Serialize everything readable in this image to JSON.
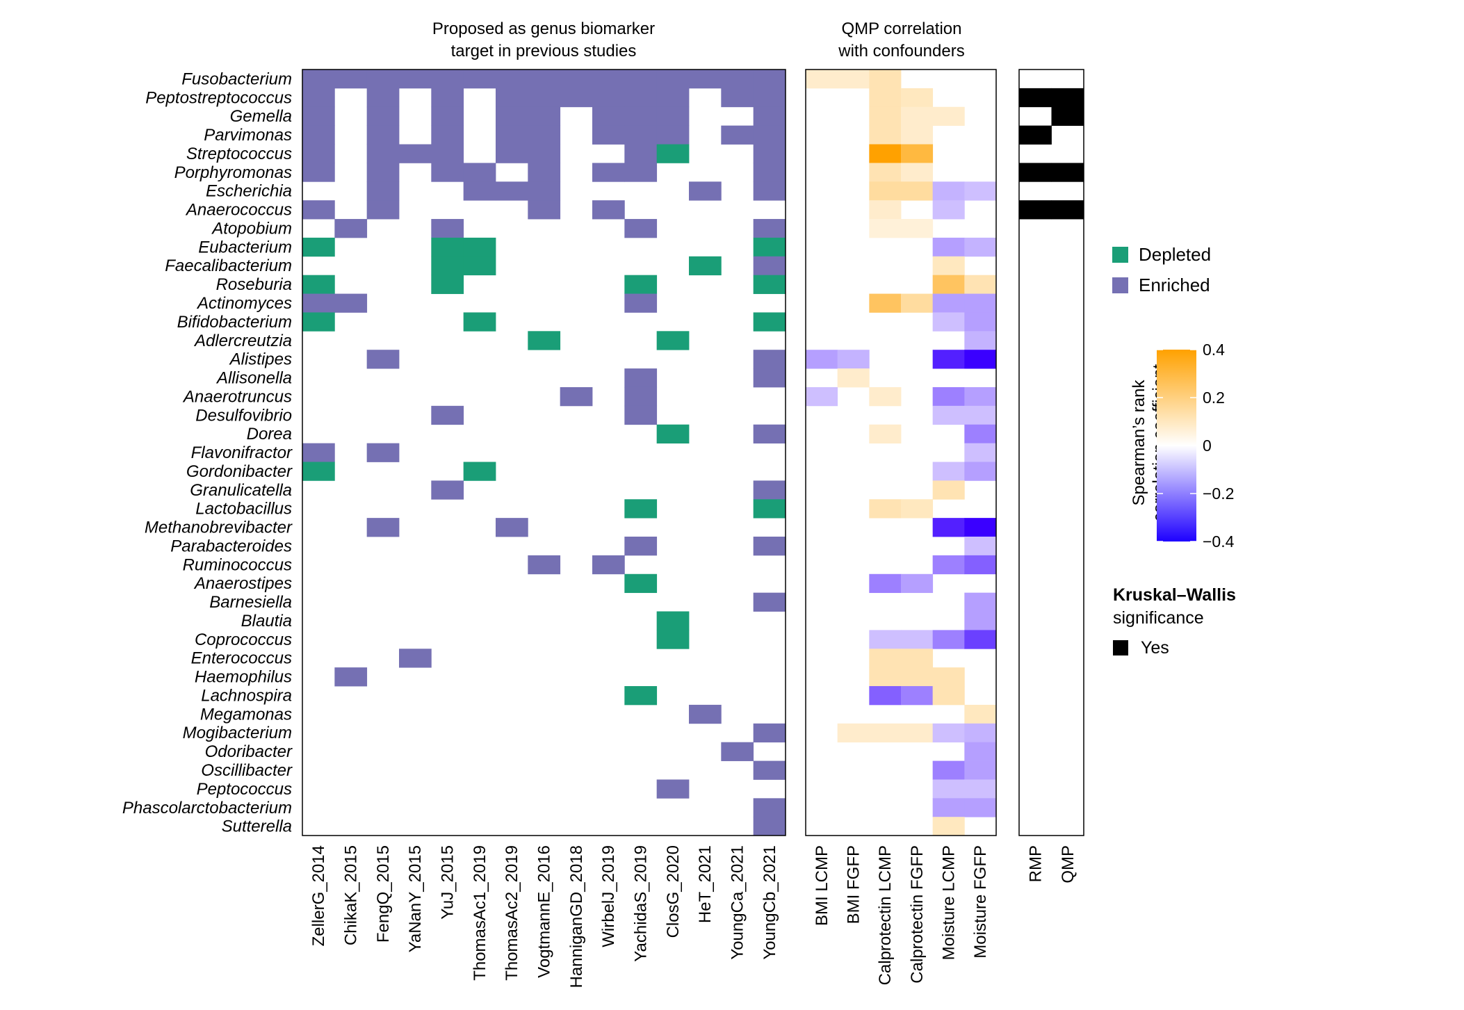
{
  "colors": {
    "depleted": "#1a9e77",
    "enriched": "#7570b3",
    "negative": "#3a00ff",
    "neutral": "#ffffff",
    "positive": "#ffa100",
    "significant": "#000000"
  },
  "chart_data": {
    "type": "heatmap",
    "genera": [
      "Fusobacterium",
      "Peptostreptococcus",
      "Gemella",
      "Parvimonas",
      "Streptococcus",
      "Porphyromonas",
      "Escherichia",
      "Anaerococcus",
      "Atopobium",
      "Eubacterium",
      "Faecalibacterium",
      "Roseburia",
      "Actinomyces",
      "Bifidobacterium",
      "Adlercreutzia",
      "Alistipes",
      "Allisonella",
      "Anaerotruncus",
      "Desulfovibrio",
      "Dorea",
      "Flavonifractor",
      "Gordonibacter",
      "Granulicatella",
      "Lactobacillus",
      "Methanobrevibacter",
      "Parabacteroides",
      "Ruminococcus",
      "Anaerostipes",
      "Barnesiella",
      "Blautia",
      "Coprococcus",
      "Enterococcus",
      "Haemophilus",
      "Lachnospira",
      "Megamonas",
      "Mogibacterium",
      "Odoribacter",
      "Oscillibacter",
      "Peptococcus",
      "Phascolarctobacterium",
      "Sutterella"
    ],
    "biomarker_panel": {
      "title_lines": [
        "Proposed as genus biomarker",
        "target in previous studies"
      ],
      "studies": [
        "ZellerG_2014",
        "ChikaK_2015",
        "FengQ_2015",
        "YaNanY_2015",
        "YuJ_2015",
        "ThomasAc1_2019",
        "ThomasAc2_2019",
        "VogtmannE_2016",
        "HanniganGD_2018",
        "WirbelJ_2019",
        "YachidaS_2019",
        "ClosG_2020",
        "HeT_2021",
        "YoungCa_2021",
        "YoungCb_2021"
      ],
      "value_key": {
        "1": "Enriched",
        "-1": "Depleted",
        "0": "Not proposed"
      },
      "matrix": [
        [
          1,
          1,
          1,
          1,
          1,
          1,
          1,
          1,
          1,
          1,
          1,
          1,
          1,
          1,
          1
        ],
        [
          1,
          0,
          1,
          0,
          1,
          0,
          1,
          1,
          1,
          1,
          1,
          1,
          0,
          1,
          1
        ],
        [
          1,
          0,
          1,
          0,
          1,
          0,
          1,
          1,
          0,
          1,
          1,
          1,
          0,
          0,
          1
        ],
        [
          1,
          0,
          1,
          0,
          1,
          0,
          1,
          1,
          0,
          1,
          1,
          1,
          0,
          1,
          1
        ],
        [
          1,
          0,
          1,
          1,
          1,
          0,
          1,
          1,
          0,
          0,
          1,
          -1,
          0,
          0,
          1
        ],
        [
          1,
          0,
          1,
          0,
          1,
          1,
          0,
          1,
          0,
          1,
          1,
          0,
          0,
          0,
          1
        ],
        [
          0,
          0,
          1,
          0,
          0,
          1,
          1,
          1,
          0,
          0,
          0,
          0,
          1,
          0,
          1
        ],
        [
          1,
          0,
          1,
          0,
          0,
          0,
          0,
          1,
          0,
          1,
          0,
          0,
          0,
          0,
          0
        ],
        [
          0,
          1,
          0,
          0,
          1,
          0,
          0,
          0,
          0,
          0,
          1,
          0,
          0,
          0,
          1
        ],
        [
          -1,
          0,
          0,
          0,
          -1,
          -1,
          0,
          0,
          0,
          0,
          0,
          0,
          0,
          0,
          -1
        ],
        [
          0,
          0,
          0,
          0,
          -1,
          -1,
          0,
          0,
          0,
          0,
          0,
          0,
          -1,
          0,
          1
        ],
        [
          -1,
          0,
          0,
          0,
          -1,
          0,
          0,
          0,
          0,
          0,
          -1,
          0,
          0,
          0,
          -1
        ],
        [
          1,
          1,
          0,
          0,
          0,
          0,
          0,
          0,
          0,
          0,
          1,
          0,
          0,
          0,
          0
        ],
        [
          -1,
          0,
          0,
          0,
          0,
          -1,
          0,
          0,
          0,
          0,
          0,
          0,
          0,
          0,
          -1
        ],
        [
          0,
          0,
          0,
          0,
          0,
          0,
          0,
          -1,
          0,
          0,
          0,
          -1,
          0,
          0,
          0
        ],
        [
          0,
          0,
          1,
          0,
          0,
          0,
          0,
          0,
          0,
          0,
          0,
          0,
          0,
          0,
          1
        ],
        [
          0,
          0,
          0,
          0,
          0,
          0,
          0,
          0,
          0,
          0,
          1,
          0,
          0,
          0,
          1
        ],
        [
          0,
          0,
          0,
          0,
          0,
          0,
          0,
          0,
          1,
          0,
          1,
          0,
          0,
          0,
          0
        ],
        [
          0,
          0,
          0,
          0,
          1,
          0,
          0,
          0,
          0,
          0,
          1,
          0,
          0,
          0,
          0
        ],
        [
          0,
          0,
          0,
          0,
          0,
          0,
          0,
          0,
          0,
          0,
          0,
          -1,
          0,
          0,
          1
        ],
        [
          1,
          0,
          1,
          0,
          0,
          0,
          0,
          0,
          0,
          0,
          0,
          0,
          0,
          0,
          0
        ],
        [
          -1,
          0,
          0,
          0,
          0,
          -1,
          0,
          0,
          0,
          0,
          0,
          0,
          0,
          0,
          0
        ],
        [
          0,
          0,
          0,
          0,
          1,
          0,
          0,
          0,
          0,
          0,
          0,
          0,
          0,
          0,
          1
        ],
        [
          0,
          0,
          0,
          0,
          0,
          0,
          0,
          0,
          0,
          0,
          -1,
          0,
          0,
          0,
          -1
        ],
        [
          0,
          0,
          1,
          0,
          0,
          0,
          1,
          0,
          0,
          0,
          0,
          0,
          0,
          0,
          0
        ],
        [
          0,
          0,
          0,
          0,
          0,
          0,
          0,
          0,
          0,
          0,
          1,
          0,
          0,
          0,
          1
        ],
        [
          0,
          0,
          0,
          0,
          0,
          0,
          0,
          1,
          0,
          1,
          0,
          0,
          0,
          0,
          0
        ],
        [
          0,
          0,
          0,
          0,
          0,
          0,
          0,
          0,
          0,
          0,
          -1,
          0,
          0,
          0,
          0
        ],
        [
          0,
          0,
          0,
          0,
          0,
          0,
          0,
          0,
          0,
          0,
          0,
          0,
          0,
          0,
          1
        ],
        [
          0,
          0,
          0,
          0,
          0,
          0,
          0,
          0,
          0,
          0,
          0,
          -1,
          0,
          0,
          0
        ],
        [
          0,
          0,
          0,
          0,
          0,
          0,
          0,
          0,
          0,
          0,
          0,
          -1,
          0,
          0,
          0
        ],
        [
          0,
          0,
          0,
          1,
          0,
          0,
          0,
          0,
          0,
          0,
          0,
          0,
          0,
          0,
          0
        ],
        [
          0,
          1,
          0,
          0,
          0,
          0,
          0,
          0,
          0,
          0,
          0,
          0,
          0,
          0,
          0
        ],
        [
          0,
          0,
          0,
          0,
          0,
          0,
          0,
          0,
          0,
          0,
          -1,
          0,
          0,
          0,
          0
        ],
        [
          0,
          0,
          0,
          0,
          0,
          0,
          0,
          0,
          0,
          0,
          0,
          0,
          1,
          0,
          0
        ],
        [
          0,
          0,
          0,
          0,
          0,
          0,
          0,
          0,
          0,
          0,
          0,
          0,
          0,
          0,
          1
        ],
        [
          0,
          0,
          0,
          0,
          0,
          0,
          0,
          0,
          0,
          0,
          0,
          0,
          0,
          1,
          0
        ],
        [
          0,
          0,
          0,
          0,
          0,
          0,
          0,
          0,
          0,
          0,
          0,
          0,
          0,
          0,
          1
        ],
        [
          0,
          0,
          0,
          0,
          0,
          0,
          0,
          0,
          0,
          0,
          0,
          1,
          0,
          0,
          0
        ],
        [
          0,
          0,
          0,
          0,
          0,
          0,
          0,
          0,
          0,
          0,
          0,
          0,
          0,
          0,
          1
        ],
        [
          0,
          0,
          0,
          0,
          0,
          0,
          0,
          0,
          0,
          0,
          0,
          0,
          0,
          0,
          1
        ]
      ]
    },
    "correlation_panel": {
      "title_lines": [
        "QMP correlation",
        "with confounders"
      ],
      "confounders": [
        "BMI LCMP",
        "BMI FGFP",
        "Calprotectin LCMP",
        "Calprotectin FGFP",
        "Moisture LCMP",
        "Moisture FGFP"
      ],
      "matrix": [
        [
          0.08,
          0.08,
          0.12,
          0,
          0,
          0
        ],
        [
          0,
          0,
          0.12,
          0.1,
          0,
          0
        ],
        [
          0,
          0,
          0.12,
          0.08,
          0.08,
          0
        ],
        [
          0,
          0,
          0.12,
          0.08,
          0,
          0
        ],
        [
          0,
          0,
          0.4,
          0.3,
          0,
          0
        ],
        [
          0,
          0,
          0.12,
          0.08,
          0,
          0
        ],
        [
          0,
          0,
          0.15,
          0.15,
          -0.12,
          -0.1
        ],
        [
          0,
          0,
          0.08,
          0,
          -0.1,
          0
        ],
        [
          0,
          0,
          0.06,
          0.06,
          0,
          0
        ],
        [
          0,
          0,
          0,
          0,
          -0.15,
          -0.12
        ],
        [
          0,
          0,
          0,
          0,
          0.1,
          0
        ],
        [
          0,
          0,
          0,
          0,
          0.25,
          0.12
        ],
        [
          0,
          0,
          0.25,
          0.15,
          -0.15,
          -0.15
        ],
        [
          0,
          0,
          0,
          0,
          -0.1,
          -0.15
        ],
        [
          0,
          0,
          0,
          0,
          0,
          -0.12
        ],
        [
          -0.15,
          -0.12,
          0,
          0,
          -0.35,
          -0.4
        ],
        [
          0,
          0.08,
          0,
          0,
          0,
          0
        ],
        [
          -0.1,
          0,
          0.08,
          0,
          -0.2,
          -0.15
        ],
        [
          0,
          0,
          0,
          0,
          -0.1,
          -0.1
        ],
        [
          0,
          0,
          0.08,
          0,
          0,
          -0.2
        ],
        [
          0,
          0,
          0,
          0,
          0,
          -0.1
        ],
        [
          0,
          0,
          0,
          0,
          -0.1,
          -0.15
        ],
        [
          0,
          0,
          0,
          0,
          0.12,
          0
        ],
        [
          0,
          0,
          0.12,
          0.1,
          0,
          0
        ],
        [
          0,
          0,
          0,
          0,
          -0.35,
          -0.4
        ],
        [
          0,
          0,
          0,
          0,
          0,
          -0.1
        ],
        [
          0,
          0,
          0,
          0,
          -0.2,
          -0.25
        ],
        [
          0,
          0,
          -0.2,
          -0.15,
          0,
          0
        ],
        [
          0,
          0,
          0,
          0,
          0,
          -0.15
        ],
        [
          0,
          0,
          0,
          0,
          0,
          -0.15
        ],
        [
          0,
          0,
          -0.1,
          -0.1,
          -0.2,
          -0.3
        ],
        [
          0,
          0,
          0.12,
          0.12,
          0,
          0
        ],
        [
          0,
          0,
          0.12,
          0.12,
          0.12,
          0
        ],
        [
          0,
          0,
          -0.25,
          -0.2,
          0.12,
          0
        ],
        [
          0,
          0,
          0,
          0,
          0,
          0.1
        ],
        [
          0,
          0.08,
          0.08,
          0.08,
          -0.1,
          -0.12
        ],
        [
          0,
          0,
          0,
          0,
          0,
          -0.15
        ],
        [
          0,
          0,
          0,
          0,
          -0.2,
          -0.15
        ],
        [
          0,
          0,
          0,
          0,
          -0.1,
          -0.1
        ],
        [
          0,
          0,
          0,
          0,
          -0.15,
          -0.15
        ],
        [
          0,
          0,
          0,
          0,
          0.1,
          0
        ]
      ]
    },
    "significance_panel": {
      "columns": [
        "RMP",
        "QMP"
      ],
      "matrix": [
        [
          0,
          0
        ],
        [
          1,
          1
        ],
        [
          0,
          1
        ],
        [
          1,
          0
        ],
        [
          0,
          0
        ],
        [
          1,
          1
        ],
        [
          0,
          0
        ],
        [
          1,
          1
        ],
        [
          0,
          0
        ],
        [
          0,
          0
        ],
        [
          0,
          0
        ],
        [
          0,
          0
        ],
        [
          0,
          0
        ],
        [
          0,
          0
        ],
        [
          0,
          0
        ],
        [
          0,
          0
        ],
        [
          0,
          0
        ],
        [
          0,
          0
        ],
        [
          0,
          0
        ],
        [
          0,
          0
        ],
        [
          0,
          0
        ],
        [
          0,
          0
        ],
        [
          0,
          0
        ],
        [
          0,
          0
        ],
        [
          0,
          0
        ],
        [
          0,
          0
        ],
        [
          0,
          0
        ],
        [
          0,
          0
        ],
        [
          0,
          0
        ],
        [
          0,
          0
        ],
        [
          0,
          0
        ],
        [
          0,
          0
        ],
        [
          0,
          0
        ],
        [
          0,
          0
        ],
        [
          0,
          0
        ],
        [
          0,
          0
        ],
        [
          0,
          0
        ],
        [
          0,
          0
        ],
        [
          0,
          0
        ],
        [
          0,
          0
        ],
        [
          0,
          0
        ]
      ]
    },
    "legend": {
      "depleted": "Depleted",
      "enriched": "Enriched",
      "colorbar_title_lines": [
        "Spearman’s rank",
        "correlation coefficient"
      ],
      "colorbar_range": [
        -0.4,
        0.4
      ],
      "colorbar_ticks": [
        0.4,
        0.2,
        0,
        -0.2,
        -0.4
      ],
      "colorbar_tick_labels": [
        "0.4",
        "0.2",
        "0",
        "−0.2",
        "−0.4"
      ],
      "kw_title": "Kruskal–Wallis",
      "kw_subtitle": "significance",
      "kw_yes": "Yes"
    }
  }
}
